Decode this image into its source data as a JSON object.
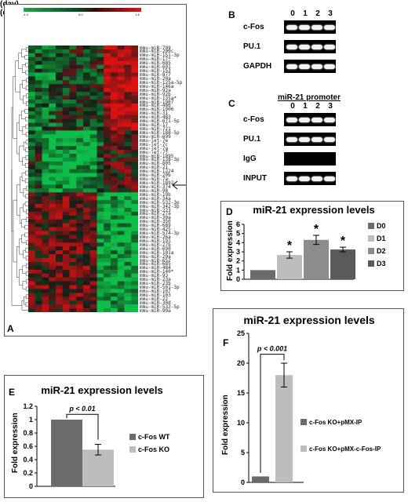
{
  "panelA": {
    "label": "A",
    "scale_min": "-1.4",
    "scale_mid": "0.0",
    "scale_max": "1.4",
    "mirnas": [
      "mmu-miR-709",
      "mmu-miR-200c",
      "mmu-miR-151-3p",
      "mmu-miR-17*",
      "mmu-miR-685",
      "mmu-miR-691",
      "mmu-miR-153",
      "mmu-miR-877",
      "mmu-miR-20a",
      "mmu-miR-125a-5p",
      "mmu-miR-146a",
      "mmu-miR-92a",
      "mmu-miR-92b",
      "mmu-miR-135a*",
      "mmu-miR-1907",
      "mmu-miR-486",
      "mmu-miR-1906",
      "mmu-miR-31",
      "mmu-miR-483",
      "mmu-miR-671-5p",
      "mmu-miR-17",
      "mmu-miR-721",
      "mmu-miR-188-5p",
      "mmu-miR-699",
      "mmu-let-7e",
      "mmu-let-7c",
      "mmu-let-7a",
      "mmu-let-7f",
      "mmu-miR-1895",
      "mmu-miR-138-3p",
      "mmu-miR-805",
      "mmu-miR-21",
      "mmu-miR-1224",
      "mmu-miR-20b",
      "mmu-miR-7a",
      "mmu-miR-1892",
      "mmu-miR-374",
      "mmu-miR-98",
      "mmu-miR-19b",
      "mmu-miR-34a",
      "mmu-miR-532-3p",
      "mmu-miR-342-3p",
      "mmu-miR-223",
      "mmu-miR-27a",
      "mmu-miR-30a",
      "mmu-miR-350",
      "mmu-miR-689",
      "mmu-miR-425",
      "mmu-miR-574-3p",
      "mmu-miR-26a",
      "mmu-miR-191",
      "mmu-miR-27b",
      "mmu-miR-690",
      "mmu-miR-101a",
      "mmu-miR-29a",
      "mmu-miR-652",
      "mmu-miR-685",
      "mmu-miR-484",
      "mmu-miR-140*",
      "mmu-miR-93",
      "mmu-miR-23a",
      "mmu-miR-23b",
      "mmu-miR-501-3p",
      "mmu-miR-107",
      "mmu-miR-103",
      "mmu-miR-22",
      "mmu-miR-30d",
      "mmu-miR-532-5p",
      "mmu-miR-99a"
    ]
  },
  "panelB": {
    "label": "B",
    "lanes": [
      "0",
      "1",
      "2",
      "3"
    ],
    "unit": "(day)",
    "rows": [
      "c-Fos",
      "PU.1",
      "GAPDH"
    ]
  },
  "panelC": {
    "label": "C",
    "title": "miR-21 promoter",
    "lanes": [
      "0",
      "1",
      "2",
      "3"
    ],
    "unit": "(day)",
    "rows": [
      "c-Fos",
      "PU.1",
      "IgG",
      "INPUT"
    ]
  },
  "chart_data": [
    {
      "panel": "D",
      "type": "bar",
      "title": "miR-21 expression levels",
      "ylabel": "Fold expression",
      "categories": [
        "D0",
        "D1",
        "D2",
        "D3"
      ],
      "values": [
        1.0,
        2.65,
        4.3,
        3.25
      ],
      "errors": [
        0,
        0.35,
        0.5,
        0.25
      ],
      "significance": [
        "",
        "*",
        "*",
        "*"
      ],
      "ylim": [
        0,
        6
      ],
      "yticks": [
        0,
        1,
        2,
        3,
        4,
        5,
        6
      ],
      "colors": [
        "#6b6b6b",
        "#bdbdbd",
        "#8c8c8c",
        "#5a5a5a"
      ],
      "legend": "right"
    },
    {
      "panel": "E",
      "type": "bar",
      "title": "miR-21 expression levels",
      "ylabel": "Fold expression",
      "categories": [
        "c-Fos WT",
        "c-Fos KO"
      ],
      "values": [
        1.0,
        0.55
      ],
      "errors": [
        0,
        0.08
      ],
      "pvalue": "p < 0.01",
      "ylim": [
        0,
        1.2
      ],
      "yticks": [
        "0",
        "0.2",
        "0.4",
        "0.6",
        "0.8",
        "1",
        "1.2"
      ],
      "colors": [
        "#6b6b6b",
        "#bdbdbd"
      ],
      "legend": "right"
    },
    {
      "panel": "F",
      "type": "bar",
      "title": "miR-21 expression levels",
      "ylabel": "Fold expression",
      "categories": [
        "c-Fos KO+pMX-IP",
        "c-Fos KO+pMX-c-Fos-IP"
      ],
      "values": [
        1.0,
        18.0
      ],
      "errors": [
        0,
        2.0
      ],
      "pvalue": "p < 0.001",
      "ylim": [
        0,
        25
      ],
      "yticks": [
        0,
        5,
        10,
        15,
        20,
        25
      ],
      "colors": [
        "#6b6b6b",
        "#bdbdbd"
      ],
      "legend": "right"
    }
  ]
}
